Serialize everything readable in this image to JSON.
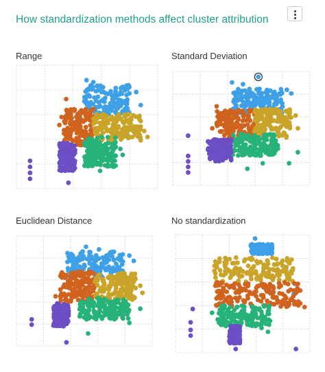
{
  "header": {
    "title": "How standardization methods affect cluster attribution",
    "menu_icon": "kebab-menu-icon"
  },
  "colors": {
    "blue": "#3ea0e6",
    "orange": "#d0631d",
    "gold": "#c9a429",
    "green": "#27b27a",
    "purple": "#6c4fc4",
    "grid": "#cfcfcf"
  },
  "chart_data": [
    {
      "type": "scatter",
      "title": "Range",
      "xlabel": "",
      "ylabel": "",
      "grid": true,
      "clusters": [
        {
          "color": "blue",
          "region": {
            "x": [
              50,
              90
            ],
            "y": [
              62,
              92
            ]
          },
          "outliers": [
            [
              52,
              97
            ],
            [
              58,
              95
            ],
            [
              88,
              88
            ],
            [
              96,
              85
            ],
            [
              100,
              72
            ]
          ]
        },
        {
          "color": "orange",
          "region": {
            "x": [
              32,
              58
            ],
            "y": [
              30,
              68
            ]
          },
          "outliers": [
            [
              30,
              60
            ],
            [
              28,
              52
            ],
            [
              34,
              78
            ]
          ]
        },
        {
          "color": "gold",
          "region": {
            "x": [
              58,
              100
            ],
            "y": [
              36,
              63
            ]
          },
          "outliers": [
            [
              103,
              46
            ],
            [
              106,
              40
            ]
          ]
        },
        {
          "color": "green",
          "region": {
            "x": [
              50,
              78
            ],
            "y": [
              10,
              40
            ]
          },
          "outliers": [
            [
              64,
              6
            ],
            [
              82,
              28
            ],
            [
              84,
              22
            ]
          ]
        },
        {
          "color": "purple",
          "region": {
            "x": [
              28,
              42
            ],
            "y": [
              6,
              34
            ]
          },
          "outliers": [
            [
              2,
              16
            ],
            [
              2,
              10
            ],
            [
              2,
              4
            ],
            [
              2,
              -2
            ],
            [
              36,
              -6
            ]
          ]
        }
      ]
    },
    {
      "type": "scatter",
      "title": "Standard Deviation",
      "xlabel": "",
      "ylabel": "",
      "grid": true,
      "clusters": [
        {
          "color": "blue",
          "region": {
            "x": [
              45,
              90
            ],
            "y": [
              66,
              93
            ]
          },
          "outliers": [
            [
              68,
              106
            ],
            [
              44,
              100
            ],
            [
              54,
              98
            ],
            [
              94,
              92
            ],
            [
              98,
              88
            ]
          ]
        },
        {
          "color": "orange",
          "region": {
            "x": [
              30,
              66
            ],
            "y": [
              40,
              70
            ]
          },
          "outliers": [
            [
              30,
              74
            ],
            [
              26,
              50
            ]
          ]
        },
        {
          "color": "gold",
          "region": {
            "x": [
              64,
              98
            ],
            "y": [
              40,
              72
            ]
          },
          "outliers": [
            [
              102,
              64
            ],
            [
              104,
              50
            ]
          ]
        },
        {
          "color": "green",
          "region": {
            "x": [
              44,
              86
            ],
            "y": [
              20,
              44
            ]
          },
          "outliers": [
            [
              58,
              6
            ],
            [
              72,
              12
            ],
            [
              96,
              12
            ],
            [
              104,
              24
            ]
          ]
        },
        {
          "color": "purple",
          "region": {
            "x": [
              22,
              44
            ],
            "y": [
              14,
              38
            ]
          },
          "outliers": [
            [
              4,
              42
            ],
            [
              4,
              20
            ],
            [
              4,
              14
            ],
            [
              4,
              8
            ],
            [
              4,
              2
            ]
          ]
        }
      ]
    },
    {
      "type": "scatter",
      "title": "Euclidean Distance",
      "xlabel": "",
      "ylabel": "",
      "grid": true,
      "clusters": [
        {
          "color": "blue",
          "region": {
            "x": [
              36,
              88
            ],
            "y": [
              64,
              95
            ]
          },
          "outliers": [
            [
              54,
              100
            ],
            [
              66,
              97
            ],
            [
              94,
              90
            ],
            [
              98,
              84
            ]
          ]
        },
        {
          "color": "orange",
          "region": {
            "x": [
              30,
              62
            ],
            "y": [
              38,
              72
            ]
          },
          "outliers": [
            [
              26,
              44
            ],
            [
              28,
              30
            ]
          ]
        },
        {
          "color": "gold",
          "region": {
            "x": [
              62,
              100
            ],
            "y": [
              40,
              70
            ]
          },
          "outliers": [
            [
              104,
              56
            ],
            [
              106,
              48
            ]
          ]
        },
        {
          "color": "green",
          "region": {
            "x": [
              48,
              94
            ],
            "y": [
              18,
              42
            ]
          },
          "outliers": [
            [
              56,
              2
            ],
            [
              94,
              14
            ],
            [
              104,
              30
            ]
          ]
        },
        {
          "color": "purple",
          "region": {
            "x": [
              24,
              38
            ],
            "y": [
              10,
              36
            ]
          },
          "outliers": [
            [
              4,
              18
            ],
            [
              4,
              12
            ],
            [
              36,
              -8
            ]
          ]
        }
      ]
    },
    {
      "type": "scatter",
      "title": "No standardization",
      "xlabel": "",
      "ylabel": "",
      "grid": true,
      "clusters": [
        {
          "color": "blue",
          "region": {
            "x": [
              60,
              80
            ],
            "y": [
              92,
              102
            ]
          },
          "outliers": [
            [
              64,
              108
            ],
            [
              98,
              74
            ],
            [
              102,
              60
            ],
            [
              100,
              50
            ]
          ]
        },
        {
          "color": "gold",
          "region": {
            "x": [
              26,
              100
            ],
            "y": [
              62,
              88
            ]
          },
          "outliers": [
            [
              96,
              82
            ],
            [
              92,
              78
            ]
          ]
        },
        {
          "color": "orange",
          "region": {
            "x": [
              26,
              106
            ],
            "y": [
              36,
              62
            ]
          },
          "outliers": [
            [
              106,
              40
            ],
            [
              110,
              36
            ]
          ]
        },
        {
          "color": "green",
          "region": {
            "x": [
              28,
              78
            ],
            "y": [
              16,
              38
            ]
          },
          "outliers": [
            [
              70,
              14
            ],
            [
              76,
              10
            ],
            [
              24,
              30
            ]
          ]
        },
        {
          "color": "purple",
          "region": {
            "x": [
              40,
              50
            ],
            "y": [
              -2,
              16
            ]
          },
          "outliers": [
            [
              6,
              34
            ],
            [
              4,
              20
            ],
            [
              4,
              12
            ],
            [
              4,
              6
            ],
            [
              46,
              -8
            ],
            [
              102,
              -8
            ]
          ]
        }
      ]
    }
  ]
}
